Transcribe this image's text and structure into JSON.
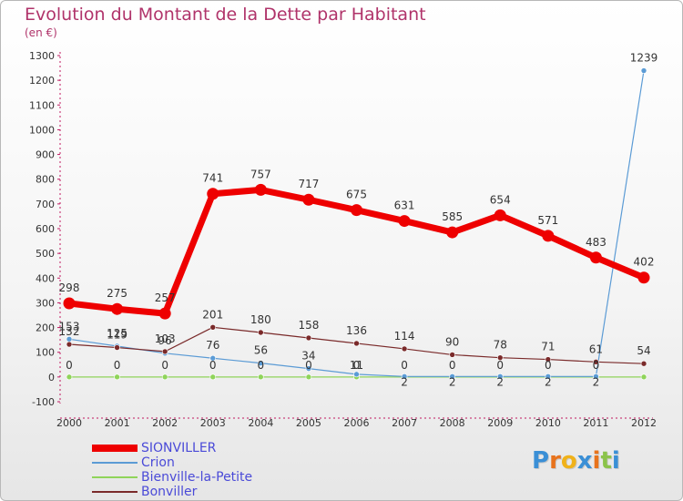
{
  "header": {
    "title": "Evolution du Montant de la Dette par Habitant",
    "subtitle": "(en €)"
  },
  "logo": {
    "text": "Proxiti",
    "letter_colors": [
      "#3a8fd6",
      "#e8731c",
      "#f0b21a",
      "#3a8fd6",
      "#e8731c",
      "#8bc34a",
      "#3a8fd6"
    ]
  },
  "chart_data": {
    "type": "line",
    "title": "Evolution du Montant de la Dette par Habitant",
    "subtitle": "(en €)",
    "x": [
      "2000",
      "2001",
      "2002",
      "2003",
      "2004",
      "2005",
      "2006",
      "2007",
      "2008",
      "2009",
      "2010",
      "2011",
      "2012"
    ],
    "y_ticks": [
      -100,
      0,
      100,
      200,
      300,
      400,
      500,
      600,
      700,
      800,
      900,
      1000,
      1100,
      1200,
      1300
    ],
    "ylim": [
      -100,
      1300
    ],
    "grid": false,
    "legend_position": "bottom-left",
    "series": [
      {
        "name": "SIONVILLER",
        "color": "#ee0000",
        "values": [
          298,
          275,
          257,
          741,
          757,
          717,
          675,
          631,
          585,
          654,
          571,
          483,
          402
        ],
        "labels": [
          "298",
          "275",
          "257",
          "741",
          "757",
          "717",
          "675",
          "631",
          "585",
          "654",
          "571",
          "483",
          "402"
        ]
      },
      {
        "name": "Crion",
        "color": "#5b9bd5",
        "values": [
          153,
          125,
          96,
          76,
          56,
          34,
          11,
          2,
          2,
          2,
          2,
          2,
          1239
        ],
        "labels": [
          "153",
          "125",
          "96",
          "76",
          "56",
          "34",
          "11",
          "2",
          "2",
          "2",
          "2",
          "2",
          "1239"
        ]
      },
      {
        "name": "Bienville-la-Petite",
        "color": "#8fd45a",
        "values": [
          0,
          0,
          0,
          0,
          0,
          0,
          0,
          0,
          0,
          0,
          0,
          0,
          0
        ],
        "labels": [
          "0",
          "0",
          "0",
          "0",
          "0",
          "0",
          "0",
          "0",
          "0",
          "0",
          "0",
          "0",
          ""
        ]
      },
      {
        "name": "Bonviller",
        "color": "#7a2a2a",
        "values": [
          132,
          119,
          103,
          201,
          180,
          158,
          136,
          114,
          90,
          78,
          71,
          61,
          54
        ],
        "labels": [
          "132",
          "119",
          "103",
          "201",
          "180",
          "158",
          "136",
          "114",
          "90",
          "78",
          "71",
          "61",
          "54"
        ]
      }
    ]
  }
}
